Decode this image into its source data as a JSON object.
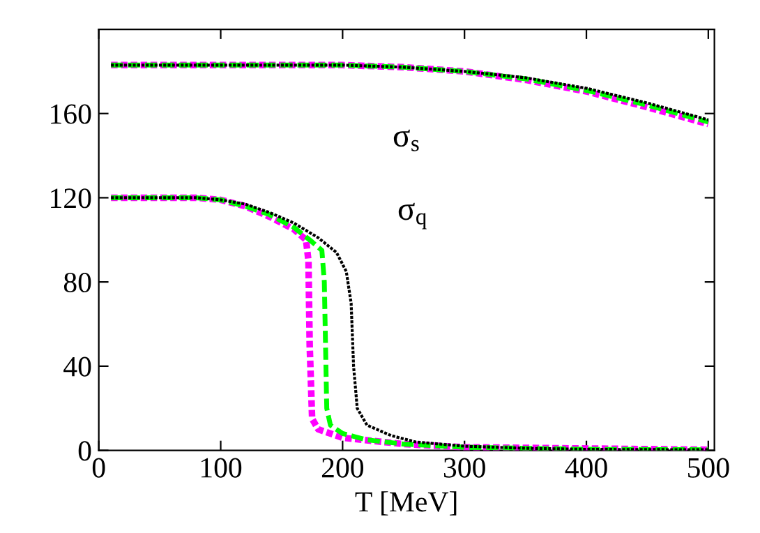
{
  "chart_data": {
    "type": "line",
    "xlabel": "T [MeV]",
    "xlim": [
      0,
      505
    ],
    "xticks": [
      0,
      100,
      200,
      300,
      400,
      500
    ],
    "ylim": [
      0,
      200
    ],
    "yticks": [
      0,
      40,
      80,
      120,
      160
    ],
    "grid": false,
    "marker": "none",
    "annotations": [
      "σ$_{s}$",
      "σ$_{q}$"
    ],
    "series": [
      {
        "color": "#000000",
        "line_style": "dotted",
        "x": [
          10,
          100,
          200,
          250,
          300,
          350,
          400,
          450,
          500
        ],
        "values": [
          183,
          183,
          183,
          182,
          180,
          177,
          172,
          165,
          157
        ]
      },
      {
        "color": "#00ff00",
        "line_style": "dashed",
        "x": [
          10,
          100,
          200,
          250,
          300,
          350,
          400,
          450,
          500
        ],
        "values": [
          183,
          183,
          183,
          182,
          180,
          176.5,
          171,
          164,
          156
        ]
      },
      {
        "color": "#ff00ff",
        "line_style": "dotted",
        "x": [
          10,
          100,
          200,
          250,
          300,
          350,
          400,
          450,
          500
        ],
        "values": [
          183,
          183,
          183,
          182,
          180,
          176,
          170.5,
          163,
          155
        ]
      },
      {
        "color": "#000000",
        "line_style": "dotted",
        "x": [
          10,
          80,
          100,
          120,
          140,
          160,
          180,
          195,
          203,
          207,
          209,
          212,
          220,
          240,
          260,
          300,
          350,
          400,
          500
        ],
        "values": [
          120,
          120,
          119,
          117,
          113,
          108,
          101,
          94,
          85,
          70,
          40,
          20,
          12,
          7,
          4,
          2,
          1,
          0.5,
          0.3
        ]
      },
      {
        "color": "#00ff00",
        "line_style": "dashed",
        "x": [
          10,
          80,
          100,
          120,
          140,
          160,
          175,
          183,
          185,
          186,
          187,
          190,
          200,
          220,
          250,
          300,
          400,
          500
        ],
        "values": [
          120,
          120,
          119,
          116,
          112,
          106,
          99,
          95,
          80,
          50,
          20,
          12,
          8,
          5,
          3,
          1.5,
          0.5,
          0.3
        ]
      },
      {
        "color": "#ff00ff",
        "line_style": "dotted",
        "x": [
          10,
          80,
          100,
          120,
          140,
          160,
          170,
          172,
          173,
          175,
          180,
          200,
          250,
          300,
          500
        ],
        "values": [
          120,
          120,
          119,
          116,
          111,
          105,
          100,
          90,
          50,
          15,
          10,
          6,
          3,
          1.5,
          0.3
        ]
      }
    ]
  }
}
